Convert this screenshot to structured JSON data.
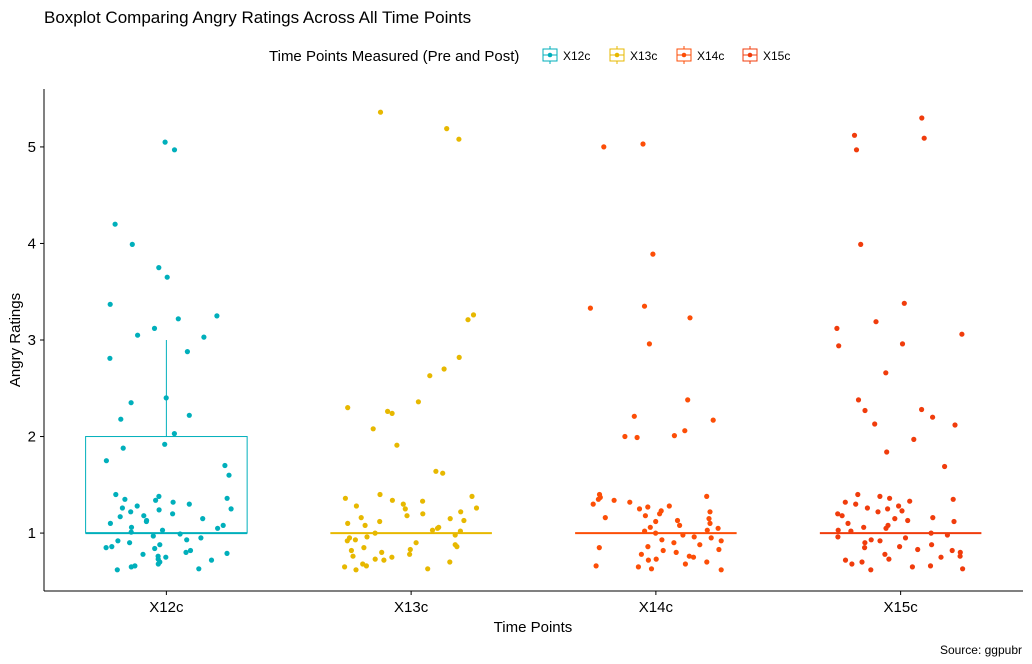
{
  "chart_data": {
    "type": "boxplot",
    "title": "Boxplot Comparing Angry Ratings Across All Time Points",
    "xlabel": "Time Points",
    "ylabel": "Angry Ratings",
    "caption": "Source: ggpubr",
    "legend": {
      "title": "Time Points Measured (Pre and Post)",
      "position": "top"
    },
    "categories": [
      "X12c",
      "X13c",
      "X14c",
      "X15c"
    ],
    "colors": [
      "#00AFBB",
      "#E7B800",
      "#FC4E07",
      "#F03C0C"
    ],
    "ylim": [
      0.4,
      5.6
    ],
    "yticks": [
      1,
      2,
      3,
      4,
      5
    ],
    "grid": false,
    "boxes": [
      {
        "name": "X12c",
        "q1": 1,
        "median": 1,
        "q3": 2,
        "whisker_low": 1,
        "whisker_high": 3
      },
      {
        "name": "X13c",
        "q1": 1,
        "median": 1,
        "q3": 1,
        "whisker_low": 1,
        "whisker_high": 1
      },
      {
        "name": "X14c",
        "q1": 1,
        "median": 1,
        "q3": 1,
        "whisker_low": 1,
        "whisker_high": 1
      },
      {
        "name": "X15c",
        "q1": 1,
        "median": 1,
        "q3": 1,
        "whisker_low": 1,
        "whisker_high": 1
      }
    ],
    "jitter_points": [
      {
        "name": "X12c",
        "values": [
          5.05,
          4.97,
          4.2,
          3.99,
          3.75,
          3.65,
          3.37,
          3.25,
          3.22,
          3.12,
          3.05,
          3.03,
          2.88,
          2.81,
          2.4,
          2.35,
          2.22,
          2.18,
          2.03,
          1.92,
          1.88,
          1.75,
          1.7,
          1.6,
          1.4,
          1.38,
          1.36,
          1.35,
          1.34,
          1.32,
          1.3,
          1.28,
          1.26,
          1.25,
          1.24,
          1.22,
          1.2,
          1.18,
          1.17,
          1.15,
          1.13,
          1.12,
          1.1,
          1.08,
          1.06,
          1.05,
          1.03,
          1.01,
          0.99,
          0.97,
          0.95,
          0.93,
          0.92,
          0.9,
          0.88,
          0.86,
          0.85,
          0.84,
          0.82,
          0.8,
          0.79,
          0.78,
          0.76,
          0.75,
          0.73,
          0.72,
          0.7,
          0.68,
          0.66,
          0.65,
          0.63,
          0.62
        ]
      },
      {
        "name": "X13c",
        "values": [
          5.36,
          5.19,
          5.08,
          3.26,
          3.21,
          2.82,
          2.7,
          2.63,
          2.36,
          2.3,
          2.26,
          2.24,
          2.08,
          1.91,
          1.64,
          1.62,
          1.4,
          1.38,
          1.36,
          1.34,
          1.33,
          1.3,
          1.28,
          1.26,
          1.25,
          1.22,
          1.2,
          1.18,
          1.16,
          1.15,
          1.13,
          1.12,
          1.1,
          1.08,
          1.06,
          1.05,
          1.03,
          1.02,
          1.0,
          0.98,
          0.96,
          0.95,
          0.93,
          0.92,
          0.9,
          0.88,
          0.86,
          0.85,
          0.83,
          0.82,
          0.8,
          0.78,
          0.76,
          0.75,
          0.73,
          0.72,
          0.7,
          0.68,
          0.66,
          0.65,
          0.63,
          0.62
        ]
      },
      {
        "name": "X14c",
        "values": [
          5.03,
          5.0,
          3.89,
          3.35,
          3.33,
          3.23,
          2.96,
          2.38,
          2.21,
          2.17,
          2.06,
          2.01,
          2.0,
          1.99,
          1.4,
          1.38,
          1.37,
          1.35,
          1.34,
          1.32,
          1.3,
          1.28,
          1.27,
          1.25,
          1.23,
          1.22,
          1.2,
          1.18,
          1.16,
          1.15,
          1.13,
          1.12,
          1.1,
          1.08,
          1.06,
          1.05,
          1.03,
          1.02,
          1.0,
          0.98,
          0.96,
          0.95,
          0.93,
          0.92,
          0.9,
          0.88,
          0.86,
          0.85,
          0.83,
          0.82,
          0.8,
          0.78,
          0.76,
          0.75,
          0.73,
          0.72,
          0.7,
          0.68,
          0.66,
          0.65,
          0.63,
          0.62
        ]
      },
      {
        "name": "X15c",
        "values": [
          5.3,
          5.12,
          5.09,
          4.97,
          3.99,
          3.38,
          3.19,
          3.12,
          3.06,
          2.96,
          2.94,
          2.66,
          2.38,
          2.28,
          2.27,
          2.2,
          2.13,
          2.12,
          1.97,
          1.84,
          1.69,
          1.4,
          1.38,
          1.36,
          1.35,
          1.33,
          1.32,
          1.3,
          1.28,
          1.26,
          1.25,
          1.23,
          1.22,
          1.2,
          1.18,
          1.16,
          1.15,
          1.13,
          1.12,
          1.1,
          1.08,
          1.06,
          1.05,
          1.03,
          1.02,
          1.0,
          0.98,
          0.96,
          0.95,
          0.93,
          0.92,
          0.9,
          0.88,
          0.86,
          0.85,
          0.83,
          0.82,
          0.8,
          0.78,
          0.76,
          0.75,
          0.73,
          0.72,
          0.7,
          0.68,
          0.66,
          0.65,
          0.63,
          0.62
        ]
      }
    ]
  }
}
